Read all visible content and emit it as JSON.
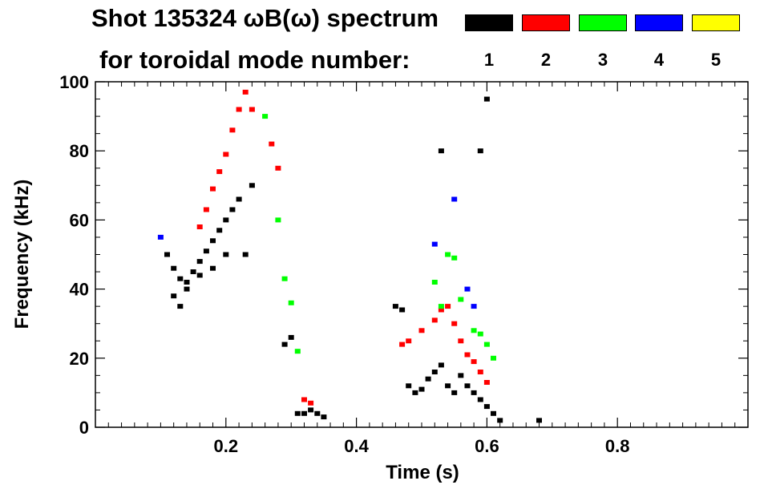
{
  "chart_data": {
    "type": "scatter",
    "title": "Shot 135324 ωB(ω) spectrum",
    "subtitle": "for toroidal mode number:",
    "xlabel": "Time (s)",
    "ylabel": "Frequency (kHz)",
    "xlim": [
      0.0,
      1.0
    ],
    "ylim": [
      0,
      100
    ],
    "x_ticks": [
      "0.2",
      "0.4",
      "0.6",
      "0.8"
    ],
    "y_ticks": [
      "0",
      "20",
      "40",
      "60",
      "80",
      "100"
    ],
    "x_tick_values": [
      0.2,
      0.4,
      0.6,
      0.8
    ],
    "y_tick_values": [
      0,
      20,
      40,
      60,
      80,
      100
    ],
    "grid": false,
    "legend_position": "top-right",
    "series": [
      {
        "name": "1",
        "color": "#000000",
        "points": [
          [
            0.11,
            50
          ],
          [
            0.12,
            46
          ],
          [
            0.13,
            43
          ],
          [
            0.14,
            42
          ],
          [
            0.15,
            45
          ],
          [
            0.16,
            48
          ],
          [
            0.17,
            51
          ],
          [
            0.18,
            54
          ],
          [
            0.19,
            57
          ],
          [
            0.2,
            60
          ],
          [
            0.21,
            63
          ],
          [
            0.22,
            66
          ],
          [
            0.12,
            38
          ],
          [
            0.13,
            35
          ],
          [
            0.14,
            40
          ],
          [
            0.16,
            44
          ],
          [
            0.18,
            46
          ],
          [
            0.2,
            50
          ],
          [
            0.23,
            50
          ],
          [
            0.24,
            70
          ],
          [
            0.29,
            24
          ],
          [
            0.3,
            26
          ],
          [
            0.31,
            4
          ],
          [
            0.32,
            4
          ],
          [
            0.33,
            5
          ],
          [
            0.34,
            4
          ],
          [
            0.35,
            3
          ],
          [
            0.46,
            35
          ],
          [
            0.47,
            34
          ],
          [
            0.48,
            12
          ],
          [
            0.49,
            10
          ],
          [
            0.5,
            11
          ],
          [
            0.51,
            14
          ],
          [
            0.52,
            16
          ],
          [
            0.53,
            18
          ],
          [
            0.54,
            12
          ],
          [
            0.55,
            10
          ],
          [
            0.56,
            15
          ],
          [
            0.57,
            12
          ],
          [
            0.58,
            10
          ],
          [
            0.59,
            8
          ],
          [
            0.6,
            6
          ],
          [
            0.61,
            4
          ],
          [
            0.62,
            2
          ],
          [
            0.68,
            2
          ],
          [
            0.53,
            80
          ],
          [
            0.59,
            80
          ],
          [
            0.6,
            95
          ]
        ]
      },
      {
        "name": "2",
        "color": "#ff0000",
        "points": [
          [
            0.16,
            58
          ],
          [
            0.17,
            63
          ],
          [
            0.18,
            69
          ],
          [
            0.19,
            74
          ],
          [
            0.2,
            79
          ],
          [
            0.21,
            86
          ],
          [
            0.22,
            92
          ],
          [
            0.23,
            97
          ],
          [
            0.24,
            92
          ],
          [
            0.27,
            82
          ],
          [
            0.28,
            75
          ],
          [
            0.32,
            8
          ],
          [
            0.33,
            7
          ],
          [
            0.47,
            24
          ],
          [
            0.48,
            25
          ],
          [
            0.5,
            28
          ],
          [
            0.52,
            31
          ],
          [
            0.53,
            34
          ],
          [
            0.54,
            35
          ],
          [
            0.55,
            30
          ],
          [
            0.56,
            25
          ],
          [
            0.57,
            21
          ],
          [
            0.58,
            19
          ],
          [
            0.59,
            16
          ],
          [
            0.6,
            13
          ]
        ]
      },
      {
        "name": "3",
        "color": "#00ff00",
        "points": [
          [
            0.26,
            90
          ],
          [
            0.28,
            60
          ],
          [
            0.29,
            43
          ],
          [
            0.3,
            36
          ],
          [
            0.31,
            22
          ],
          [
            0.52,
            42
          ],
          [
            0.54,
            50
          ],
          [
            0.55,
            49
          ],
          [
            0.56,
            37
          ],
          [
            0.58,
            28
          ],
          [
            0.59,
            27
          ],
          [
            0.6,
            24
          ],
          [
            0.53,
            35
          ],
          [
            0.61,
            20
          ]
        ]
      },
      {
        "name": "4",
        "color": "#0000ff",
        "points": [
          [
            0.1,
            55
          ],
          [
            0.52,
            53
          ],
          [
            0.55,
            66
          ],
          [
            0.57,
            40
          ],
          [
            0.58,
            35
          ]
        ]
      },
      {
        "name": "5",
        "color": "#ffff00",
        "points": []
      }
    ]
  }
}
